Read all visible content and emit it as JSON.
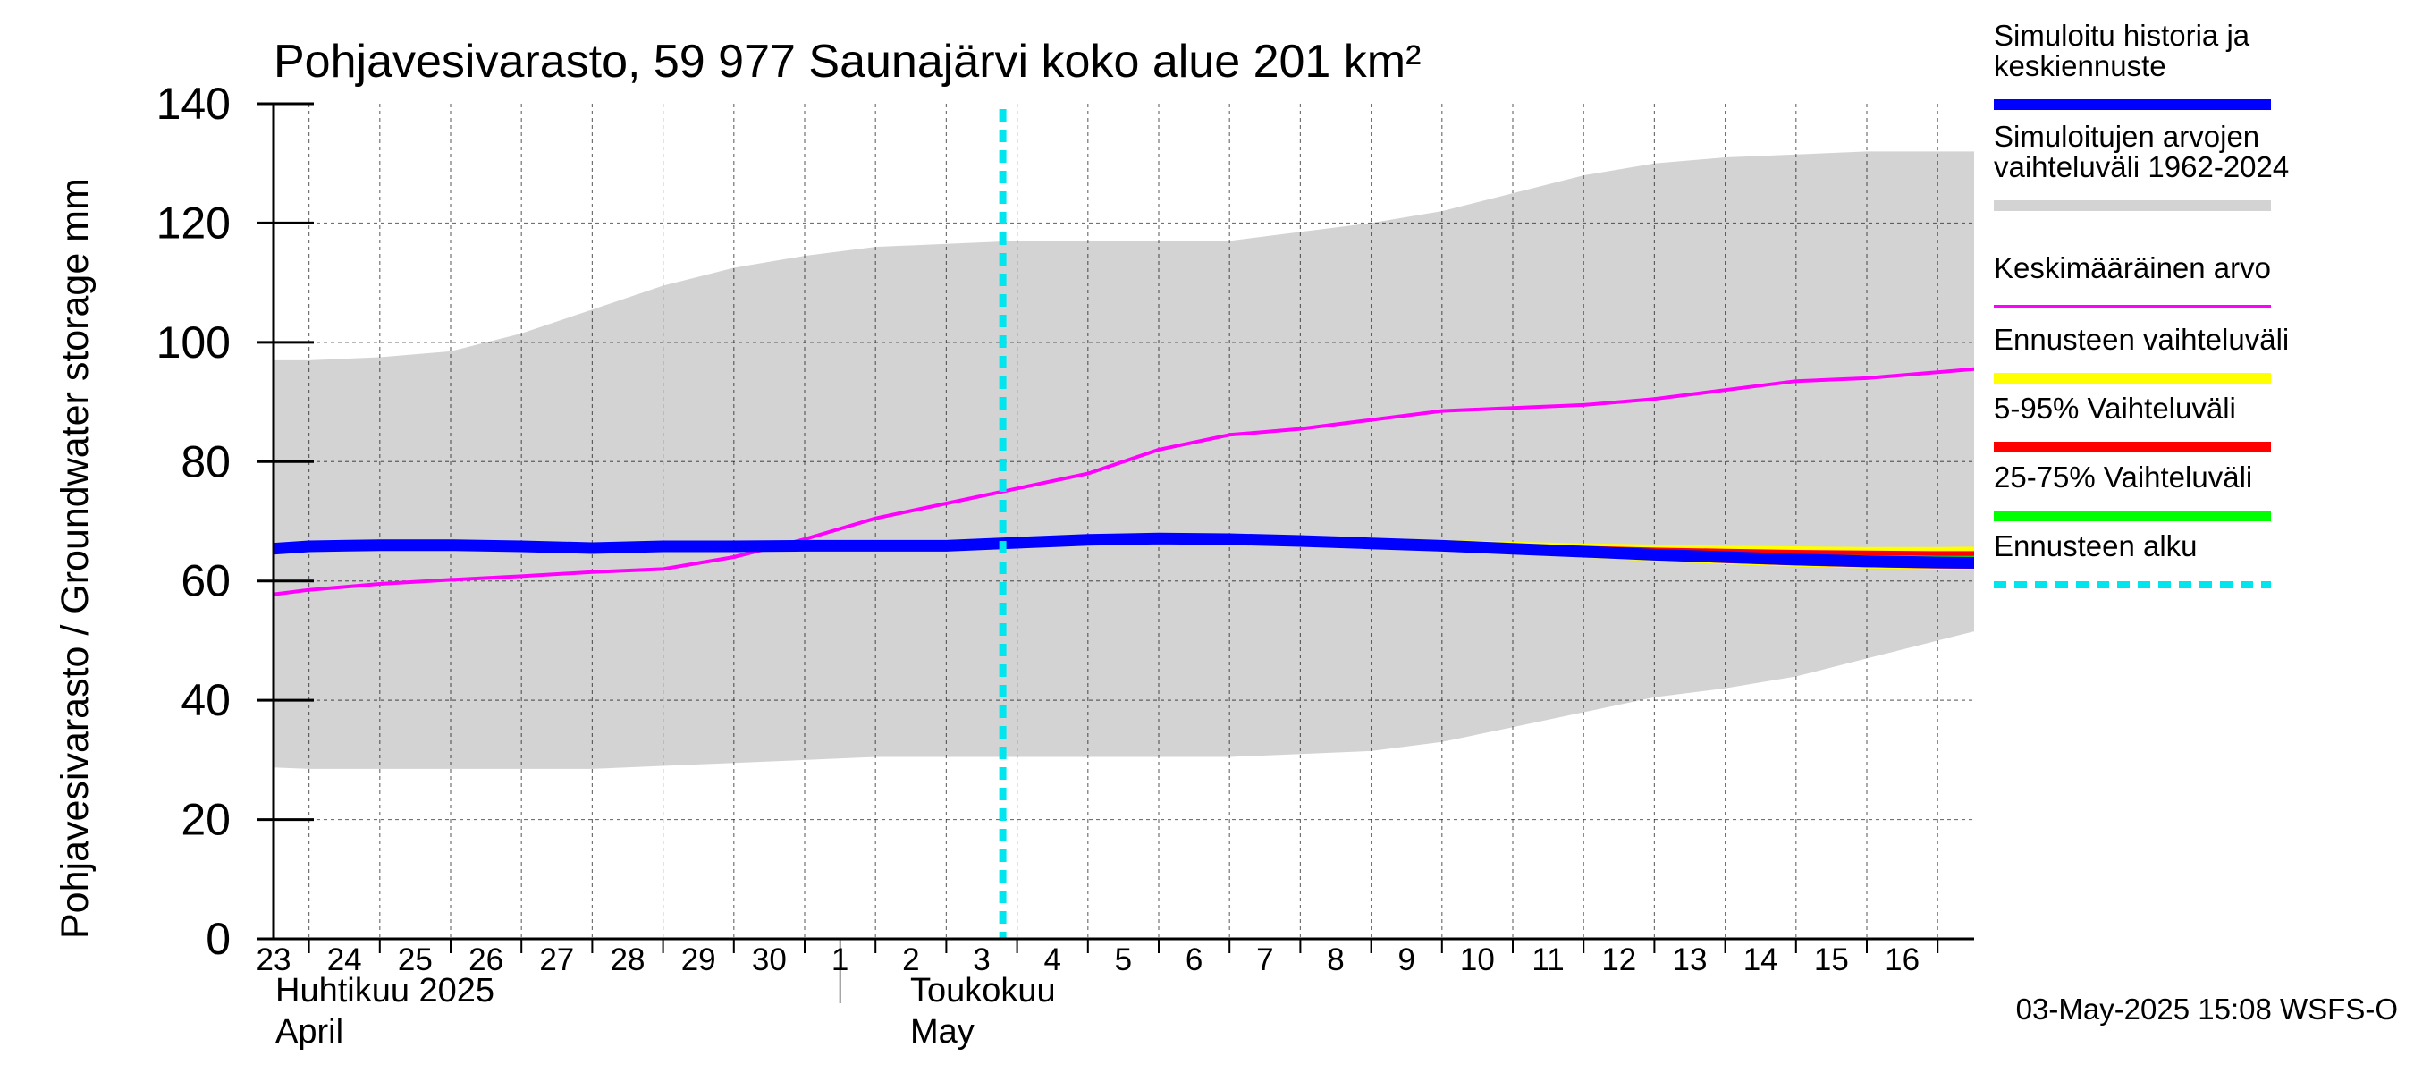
{
  "chart_data": {
    "type": "line",
    "title": "Pohjavesivarasto, 59 977 Saunajärvi koko alue 201 km²",
    "ylabel": "Pohjavesivarasto / Groundwater storage   mm",
    "ylim": [
      0,
      140
    ],
    "yticks": [
      "0",
      "20",
      "40",
      "60",
      "80",
      "100",
      "120",
      "140"
    ],
    "grid": true,
    "x_tick_labels": [
      "23",
      "24",
      "25",
      "26",
      "27",
      "28",
      "29",
      "30",
      "1",
      "2",
      "3",
      "4",
      "5",
      "6",
      "7",
      "8",
      "9",
      "10",
      "11",
      "12",
      "13",
      "14",
      "15",
      "16"
    ],
    "x_dates": [
      "2025-04-23",
      "2025-04-24",
      "2025-04-25",
      "2025-04-26",
      "2025-04-27",
      "2025-04-28",
      "2025-04-29",
      "2025-04-30",
      "2025-05-01",
      "2025-05-02",
      "2025-05-03",
      "2025-05-04",
      "2025-05-05",
      "2025-05-06",
      "2025-05-07",
      "2025-05-08",
      "2025-05-09",
      "2025-05-10",
      "2025-05-11",
      "2025-05-12",
      "2025-05-13",
      "2025-05-14",
      "2025-05-15",
      "2025-05-16"
    ],
    "month_labels": [
      {
        "line1": "Huhtikuu  2025",
        "line2": "April"
      },
      {
        "line1": "Toukokuu",
        "line2": "May"
      }
    ],
    "forecast_start": "2025-05-03",
    "legend_position": "right",
    "legend": [
      {
        "label": "Simuloitu historia ja keskiennuste",
        "color": "#0000ff",
        "style": "thick"
      },
      {
        "label": "Simuloitujen arvojen vaihteluväli 1962-2024",
        "color": "#d3d3d3",
        "style": "thick"
      },
      {
        "label": "Keskimääräinen arvo",
        "color": "#ff00ff",
        "style": "thin"
      },
      {
        "label": "Ennusteen vaihteluväli",
        "color": "#ffff00",
        "style": "thick"
      },
      {
        "label": "5-95% Vaihteluväli",
        "color": "#ff0000",
        "style": "thick"
      },
      {
        "label": "25-75% Vaihteluväli",
        "color": "#00ff00",
        "style": "thick"
      },
      {
        "label": "Ennusteen alku",
        "color": "#00e5ee",
        "style": "dashed"
      }
    ],
    "series": [
      {
        "key": "range_upper",
        "x": [
          "2025-04-22",
          "2025-04-23",
          "2025-04-24",
          "2025-04-25",
          "2025-04-26",
          "2025-04-27",
          "2025-04-28",
          "2025-04-29",
          "2025-04-30",
          "2025-05-01",
          "2025-05-02",
          "2025-05-03",
          "2025-05-04",
          "2025-05-05",
          "2025-05-06",
          "2025-05-07",
          "2025-05-08",
          "2025-05-09",
          "2025-05-10",
          "2025-05-11",
          "2025-05-12",
          "2025-05-13",
          "2025-05-14",
          "2025-05-15",
          "2025-05-16",
          "2025-05-17"
        ],
        "values": [
          97,
          97,
          97.5,
          98.5,
          101.5,
          105.5,
          109.5,
          112.5,
          114.5,
          116,
          116.5,
          117,
          117,
          117,
          117,
          118.5,
          120,
          122,
          125,
          128,
          130,
          131,
          131.5,
          132,
          132,
          132
        ]
      },
      {
        "key": "range_lower",
        "x": [
          "2025-04-22",
          "2025-04-23",
          "2025-04-24",
          "2025-04-25",
          "2025-04-26",
          "2025-04-27",
          "2025-04-28",
          "2025-04-29",
          "2025-04-30",
          "2025-05-01",
          "2025-05-02",
          "2025-05-03",
          "2025-05-04",
          "2025-05-05",
          "2025-05-06",
          "2025-05-07",
          "2025-05-08",
          "2025-05-09",
          "2025-05-10",
          "2025-05-11",
          "2025-05-12",
          "2025-05-13",
          "2025-05-14",
          "2025-05-15",
          "2025-05-16",
          "2025-05-17"
        ],
        "values": [
          29,
          28.5,
          28.5,
          28.5,
          28.5,
          28.5,
          29,
          29.5,
          30,
          30.5,
          30.5,
          30.5,
          30.5,
          30.5,
          30.5,
          31,
          31.5,
          33,
          35.5,
          38,
          40.5,
          42,
          44,
          47,
          50,
          53
        ]
      },
      {
        "key": "mean",
        "x": [
          "2025-04-22",
          "2025-04-23",
          "2025-04-24",
          "2025-04-25",
          "2025-04-26",
          "2025-04-27",
          "2025-04-28",
          "2025-04-29",
          "2025-04-30",
          "2025-05-01",
          "2025-05-02",
          "2025-05-03",
          "2025-05-04",
          "2025-05-05",
          "2025-05-06",
          "2025-05-07",
          "2025-05-08",
          "2025-05-09",
          "2025-05-10",
          "2025-05-11",
          "2025-05-12",
          "2025-05-13",
          "2025-05-14",
          "2025-05-15",
          "2025-05-16",
          "2025-05-17"
        ],
        "values": [
          57,
          58.5,
          59.5,
          60.2,
          60.8,
          61.5,
          62,
          64,
          67,
          70.5,
          73,
          75.5,
          78,
          82,
          84.5,
          85.5,
          87,
          88.5,
          89,
          89.5,
          90.5,
          92,
          93.5,
          94,
          95,
          96
        ]
      },
      {
        "key": "forecast_range_upper",
        "x": [
          "2025-05-03",
          "2025-05-04",
          "2025-05-05",
          "2025-05-06",
          "2025-05-07",
          "2025-05-08",
          "2025-05-09",
          "2025-05-10",
          "2025-05-11",
          "2025-05-12",
          "2025-05-13",
          "2025-05-14",
          "2025-05-15",
          "2025-05-16",
          "2025-05-17"
        ],
        "values": [
          66.8,
          67.3,
          67.6,
          67.6,
          67.4,
          67.2,
          66.9,
          66.6,
          66.3,
          66.1,
          65.9,
          65.8,
          65.7,
          65.7,
          65.8
        ]
      },
      {
        "key": "forecast_range_lower",
        "x": [
          "2025-05-03",
          "2025-05-04",
          "2025-05-05",
          "2025-05-06",
          "2025-05-07",
          "2025-05-08",
          "2025-05-09",
          "2025-05-10",
          "2025-05-11",
          "2025-05-12",
          "2025-05-13",
          "2025-05-14",
          "2025-05-15",
          "2025-05-16",
          "2025-05-17"
        ],
        "values": [
          66,
          66.5,
          66.8,
          66.7,
          66.4,
          65.9,
          65.3,
          64.6,
          63.9,
          63.3,
          62.8,
          62.4,
          62.1,
          61.9,
          61.8
        ]
      },
      {
        "key": "p95",
        "x": [
          "2025-05-03",
          "2025-05-04",
          "2025-05-05",
          "2025-05-06",
          "2025-05-07",
          "2025-05-08",
          "2025-05-09",
          "2025-05-10",
          "2025-05-11",
          "2025-05-12",
          "2025-05-13",
          "2025-05-14",
          "2025-05-15",
          "2025-05-16",
          "2025-05-17"
        ],
        "values": [
          66.6,
          67.1,
          67.4,
          67.4,
          67.2,
          66.9,
          66.6,
          66.2,
          65.9,
          65.6,
          65.4,
          65.2,
          65.1,
          65,
          65
        ]
      },
      {
        "key": "p5",
        "x": [
          "2025-05-03",
          "2025-05-04",
          "2025-05-05",
          "2025-05-06",
          "2025-05-07",
          "2025-05-08",
          "2025-05-09",
          "2025-05-10",
          "2025-05-11",
          "2025-05-12",
          "2025-05-13",
          "2025-05-14",
          "2025-05-15",
          "2025-05-16",
          "2025-05-17"
        ],
        "values": [
          66.1,
          66.6,
          66.9,
          66.8,
          66.5,
          66,
          65.4,
          64.8,
          64.1,
          63.5,
          63,
          62.6,
          62.3,
          62.1,
          62
        ]
      },
      {
        "key": "p75",
        "x": [
          "2025-05-03",
          "2025-05-04",
          "2025-05-05",
          "2025-05-06",
          "2025-05-07",
          "2025-05-08",
          "2025-05-09",
          "2025-05-10",
          "2025-05-11",
          "2025-05-12",
          "2025-05-13",
          "2025-05-14",
          "2025-05-15",
          "2025-05-16",
          "2025-05-17"
        ],
        "values": [
          66.5,
          67,
          67.3,
          67.3,
          67,
          66.7,
          66.3,
          65.9,
          65.5,
          65.1,
          64.8,
          64.5,
          64.3,
          64.2,
          64.2
        ]
      },
      {
        "key": "p25",
        "x": [
          "2025-05-03",
          "2025-05-04",
          "2025-05-05",
          "2025-05-06",
          "2025-05-07",
          "2025-05-08",
          "2025-05-09",
          "2025-05-10",
          "2025-05-11",
          "2025-05-12",
          "2025-05-13",
          "2025-05-14",
          "2025-05-15",
          "2025-05-16",
          "2025-05-17"
        ],
        "values": [
          66.2,
          66.7,
          67,
          66.9,
          66.6,
          66.2,
          65.7,
          65.1,
          64.5,
          64,
          63.5,
          63.1,
          62.8,
          62.6,
          62.5
        ]
      },
      {
        "key": "simulated",
        "x": [
          "2025-04-22",
          "2025-04-23",
          "2025-04-24",
          "2025-04-25",
          "2025-04-26",
          "2025-04-27",
          "2025-04-28",
          "2025-04-29",
          "2025-04-30",
          "2025-05-01",
          "2025-05-02",
          "2025-05-03",
          "2025-05-04",
          "2025-05-05",
          "2025-05-06",
          "2025-05-07",
          "2025-05-08",
          "2025-05-09",
          "2025-05-10",
          "2025-05-11",
          "2025-05-12",
          "2025-05-13",
          "2025-05-14",
          "2025-05-15",
          "2025-05-16",
          "2025-05-17"
        ],
        "values": [
          65,
          65.8,
          66,
          66,
          65.8,
          65.5,
          65.8,
          65.8,
          65.9,
          65.9,
          65.9,
          66.4,
          66.9,
          67.1,
          67,
          66.7,
          66.3,
          65.9,
          65.4,
          64.9,
          64.4,
          64,
          63.6,
          63.3,
          63.1,
          63
        ]
      }
    ]
  },
  "footer": "03-May-2025 15:08 WSFS-O"
}
